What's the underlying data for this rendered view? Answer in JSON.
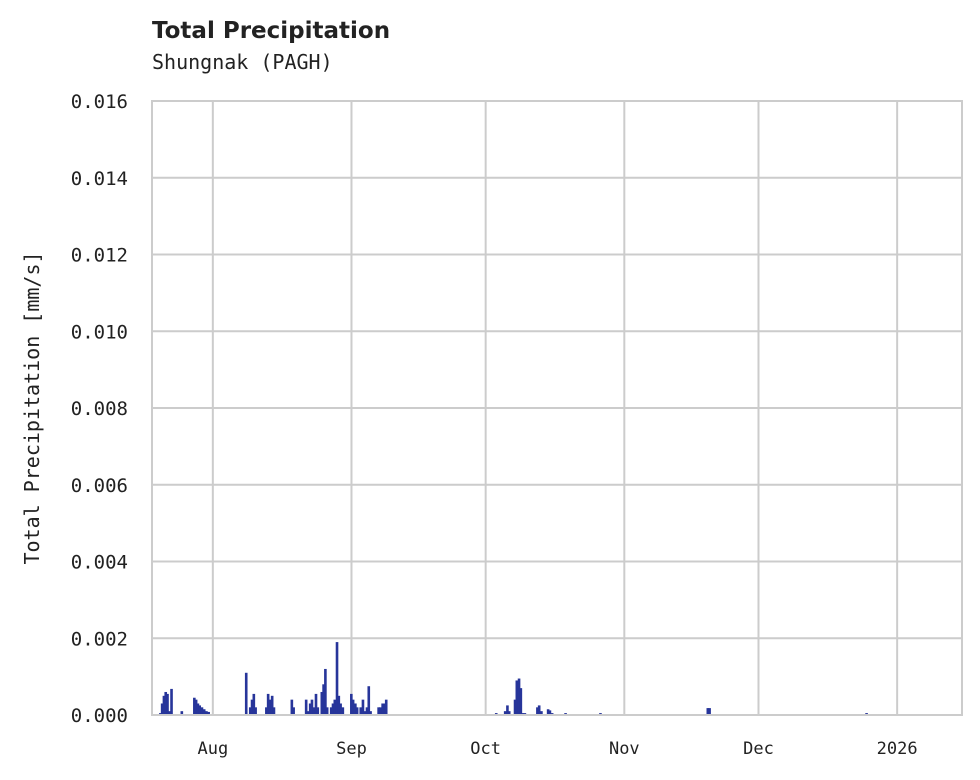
{
  "chart_data": {
    "type": "bar",
    "title": "Total Precipitation",
    "subtitle": "Shungnak (PAGH)",
    "xlabel": "",
    "ylabel": "Total Precipitation [mm/s]",
    "ylim": [
      0,
      0.016
    ],
    "yticks": [
      "0.000",
      "0.002",
      "0.004",
      "0.006",
      "0.008",
      "0.010",
      "0.012",
      "0.014",
      "0.016"
    ],
    "xticks": [
      "Aug",
      "Sep",
      "Oct",
      "Nov",
      "Dec",
      "2026"
    ],
    "xrange_days_relative_to_aug1": [
      -13.6,
      167.5
    ],
    "xtick_days_relative_to_aug1": [
      0,
      31,
      61,
      92,
      122,
      153
    ],
    "grid": true,
    "legend": null,
    "color": "#27359a",
    "series": [
      {
        "name": "Total Precipitation",
        "unit": "mm/s",
        "points": [
          {
            "day": -11.8,
            "value": 5e-05
          },
          {
            "day": -11.4,
            "value": 0.0003
          },
          {
            "day": -11.0,
            "value": 0.0005
          },
          {
            "day": -10.6,
            "value": 0.0006
          },
          {
            "day": -10.2,
            "value": 0.00055
          },
          {
            "day": -9.8,
            "value": 0.0001
          },
          {
            "day": -9.3,
            "value": 0.00068
          },
          {
            "day": -7.0,
            "value": 0.0001
          },
          {
            "day": -4.2,
            "value": 0.00045
          },
          {
            "day": -3.8,
            "value": 0.0004
          },
          {
            "day": -3.4,
            "value": 0.0003
          },
          {
            "day": -3.0,
            "value": 0.00025
          },
          {
            "day": -2.5,
            "value": 0.0002
          },
          {
            "day": -2.0,
            "value": 0.00015
          },
          {
            "day": -1.5,
            "value": 0.0001
          },
          {
            "day": -1.0,
            "value": 8e-05
          },
          {
            "day": 7.4,
            "value": 0.0011
          },
          {
            "day": 8.3,
            "value": 0.0002
          },
          {
            "day": 8.7,
            "value": 0.0004
          },
          {
            "day": 9.1,
            "value": 0.00055
          },
          {
            "day": 9.5,
            "value": 0.0002
          },
          {
            "day": 11.9,
            "value": 0.0002
          },
          {
            "day": 12.3,
            "value": 0.00055
          },
          {
            "day": 12.8,
            "value": 0.0004
          },
          {
            "day": 13.2,
            "value": 0.0005
          },
          {
            "day": 13.6,
            "value": 0.0002
          },
          {
            "day": 17.6,
            "value": 0.0004
          },
          {
            "day": 18.0,
            "value": 0.0002
          },
          {
            "day": 20.8,
            "value": 0.0004
          },
          {
            "day": 21.2,
            "value": 0.0001
          },
          {
            "day": 21.7,
            "value": 0.0003
          },
          {
            "day": 22.1,
            "value": 0.0004
          },
          {
            "day": 22.5,
            "value": 0.0002
          },
          {
            "day": 23.0,
            "value": 0.00055
          },
          {
            "day": 23.4,
            "value": 0.0002
          },
          {
            "day": 24.3,
            "value": 0.0006
          },
          {
            "day": 24.7,
            "value": 0.0008
          },
          {
            "day": 25.1,
            "value": 0.0012
          },
          {
            "day": 25.5,
            "value": 0.0002
          },
          {
            "day": 26.4,
            "value": 0.0002
          },
          {
            "day": 26.8,
            "value": 0.0003
          },
          {
            "day": 27.2,
            "value": 0.0004
          },
          {
            "day": 27.7,
            "value": 0.0019
          },
          {
            "day": 28.1,
            "value": 0.0005
          },
          {
            "day": 28.5,
            "value": 0.0003
          },
          {
            "day": 29.0,
            "value": 0.0002
          },
          {
            "day": 30.9,
            "value": 0.00055
          },
          {
            "day": 31.3,
            "value": 0.0004
          },
          {
            "day": 31.8,
            "value": 0.0003
          },
          {
            "day": 32.2,
            "value": 0.0002
          },
          {
            "day": 33.0,
            "value": 0.0002
          },
          {
            "day": 33.5,
            "value": 0.0004
          },
          {
            "day": 33.9,
            "value": 0.0001
          },
          {
            "day": 34.4,
            "value": 0.0002
          },
          {
            "day": 34.8,
            "value": 0.00075
          },
          {
            "day": 35.2,
            "value": 0.0001
          },
          {
            "day": 37.0,
            "value": 0.0002
          },
          {
            "day": 37.4,
            "value": 0.0002
          },
          {
            "day": 37.9,
            "value": 0.0003
          },
          {
            "day": 38.3,
            "value": 0.0003
          },
          {
            "day": 38.7,
            "value": 0.0004
          },
          {
            "day": 63.3,
            "value": 5e-05
          },
          {
            "day": 65.3,
            "value": 0.0001
          },
          {
            "day": 65.8,
            "value": 0.00025
          },
          {
            "day": 66.2,
            "value": 0.0001
          },
          {
            "day": 67.5,
            "value": 0.0004
          },
          {
            "day": 67.9,
            "value": 0.0009
          },
          {
            "day": 68.4,
            "value": 0.00095
          },
          {
            "day": 68.8,
            "value": 0.0007
          },
          {
            "day": 69.2,
            "value": 5e-05
          },
          {
            "day": 69.7,
            "value": 5e-05
          },
          {
            "day": 72.5,
            "value": 0.0002
          },
          {
            "day": 72.9,
            "value": 0.00025
          },
          {
            "day": 73.4,
            "value": 0.0001
          },
          {
            "day": 74.9,
            "value": 0.00015
          },
          {
            "day": 75.3,
            "value": 0.00012
          },
          {
            "day": 75.8,
            "value": 5e-05
          },
          {
            "day": 78.8,
            "value": 5e-05
          },
          {
            "day": 86.6,
            "value": 5e-05
          },
          {
            "day": 110.6,
            "value": 0.00018
          },
          {
            "day": 111.0,
            "value": 0.00018
          },
          {
            "day": 146.1,
            "value": 5e-05
          }
        ]
      }
    ]
  }
}
